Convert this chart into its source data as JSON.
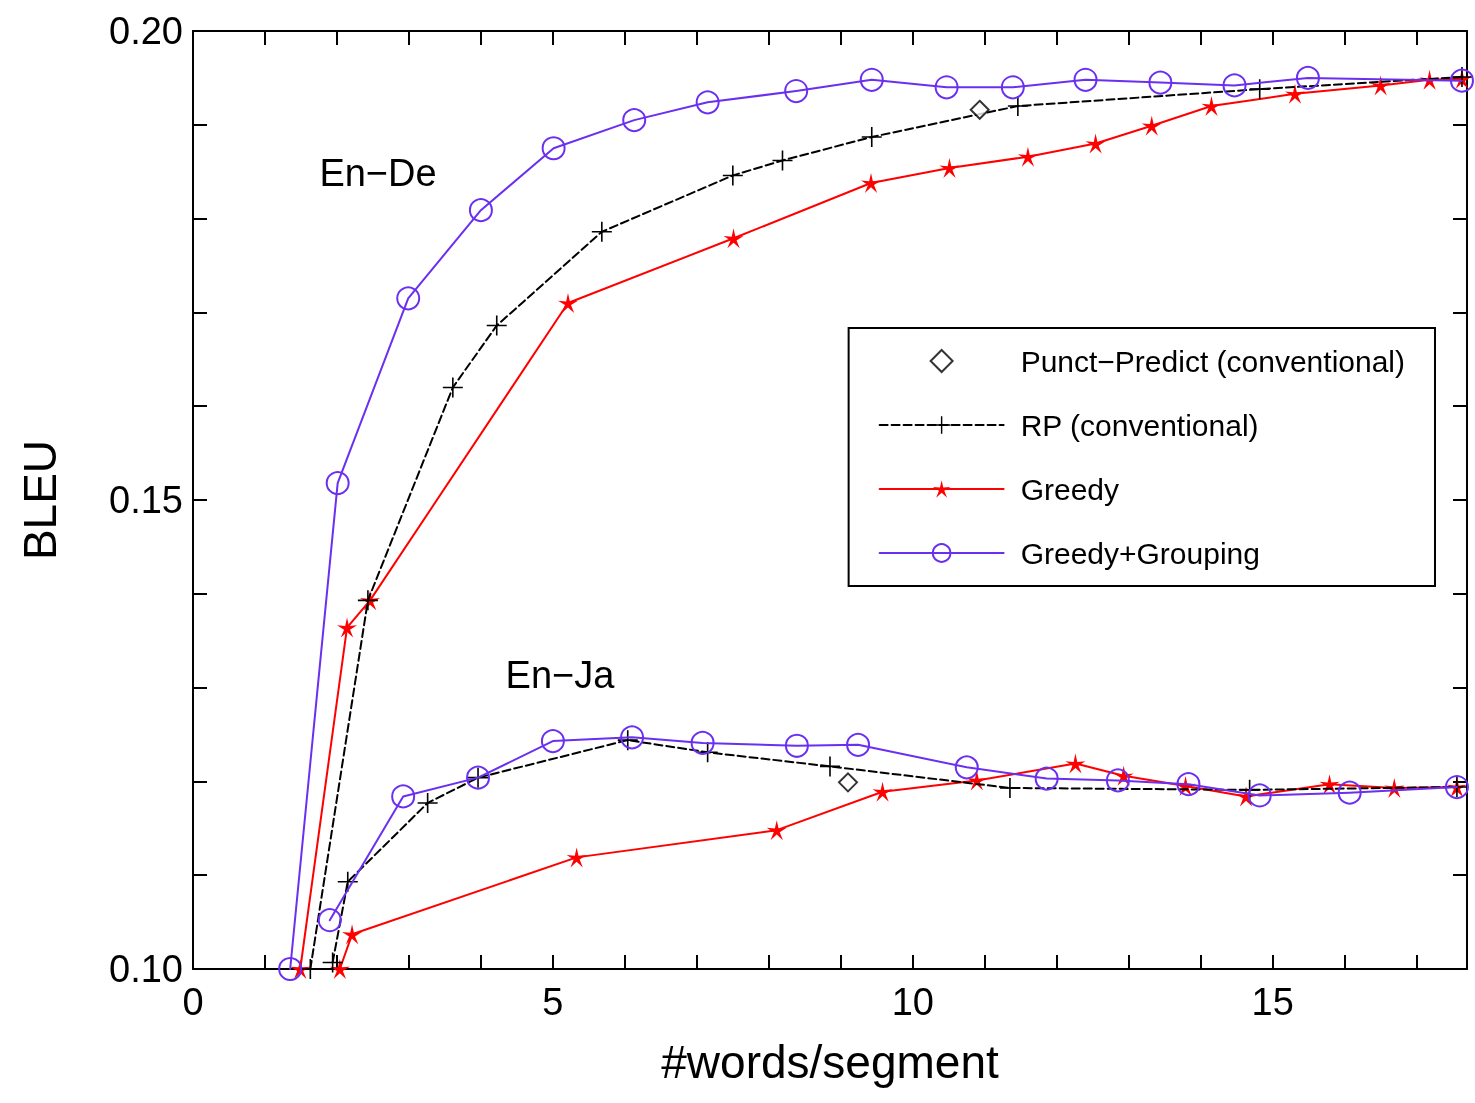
{
  "chart_data": {
    "type": "line",
    "xlabel": "#words/segment",
    "ylabel": "BLEU",
    "xlim": [
      0,
      17.7
    ],
    "ylim": [
      0.1,
      0.2
    ],
    "xticks": [
      0,
      {
        "value": 1,
        "label": null
      },
      {
        "value": 2,
        "label": null
      },
      {
        "value": 3,
        "label": null
      },
      {
        "value": 4,
        "label": null
      },
      5,
      {
        "value": 6,
        "label": null
      },
      {
        "value": 7,
        "label": null
      },
      {
        "value": 8,
        "label": null
      },
      {
        "value": 9,
        "label": null
      },
      10,
      {
        "value": 11,
        "label": null
      },
      {
        "value": 12,
        "label": null
      },
      {
        "value": 13,
        "label": null
      },
      {
        "value": 14,
        "label": null
      },
      15,
      {
        "value": 16,
        "label": null
      },
      {
        "value": 17,
        "label": null
      }
    ],
    "yticks": [
      {
        "value": 0.1,
        "label": "0.10"
      },
      {
        "value": 0.11,
        "label": null
      },
      {
        "value": 0.12,
        "label": null
      },
      {
        "value": 0.13,
        "label": null
      },
      {
        "value": 0.14,
        "label": null
      },
      {
        "value": 0.15,
        "label": "0.15"
      },
      {
        "value": 0.16,
        "label": null
      },
      {
        "value": 0.17,
        "label": null
      },
      {
        "value": 0.18,
        "label": null
      },
      {
        "value": 0.19,
        "label": null
      },
      {
        "value": 0.2,
        "label": "0.20"
      }
    ],
    "grid": false,
    "legend": "right",
    "annotations": [
      "En−De",
      "En−Ja"
    ],
    "series": [
      {
        "name": "Punct−Predict (conventional)",
        "type": "scatter",
        "color": "#000000",
        "marker": "diamond",
        "x": [
          10.93,
          9.1
        ],
        "values": [
          0.1916,
          0.1199
        ]
      },
      {
        "name": "RP (conventional)",
        "color": "#000000",
        "marker": "cross",
        "line_style": "dashed",
        "x": [
          1.63,
          2.43,
          3.61,
          4.22,
          5.68,
          7.5,
          8.19,
          9.43,
          11.46,
          14.82,
          17.63
        ],
        "values": [
          0.1,
          0.1393,
          0.162,
          0.1686,
          0.1786,
          0.1846,
          0.1862,
          0.1887,
          0.192,
          0.1938,
          0.1951
        ]
      },
      {
        "name": "Greedy",
        "color": "#ff0000",
        "marker": "star",
        "line_style": "solid",
        "x": [
          1.49,
          2.14,
          2.46,
          5.21,
          7.51,
          9.42,
          10.51,
          11.6,
          12.54,
          13.32,
          14.15,
          15.31,
          16.5,
          17.18,
          17.63
        ],
        "values": [
          0.1,
          0.1364,
          0.1393,
          0.171,
          0.1779,
          0.1838,
          0.1854,
          0.1866,
          0.188,
          0.1899,
          0.192,
          0.1933,
          0.1942,
          0.1948,
          0.1949
        ]
      },
      {
        "name": "Greedy+Grouping",
        "color": "#6a2ff0",
        "marker": "circle",
        "line_style": "solid",
        "x": [
          1.35,
          2.01,
          2.99,
          4.0,
          5.01,
          6.13,
          7.15,
          8.38,
          9.43,
          10.47,
          11.39,
          12.4,
          13.44,
          14.47,
          15.49,
          17.63
        ],
        "values": [
          0.1,
          0.1518,
          0.1715,
          0.1809,
          0.1875,
          0.1905,
          0.1924,
          0.1936,
          0.1948,
          0.194,
          0.194,
          0.1948,
          0.1945,
          0.1942,
          0.195,
          0.1947
        ]
      },
      {
        "color": "#000000",
        "marker": "cross",
        "line_style": "dashed",
        "x": [
          1.94,
          2.15,
          3.26,
          3.96,
          6.04,
          7.15,
          8.85,
          11.35,
          14.68,
          17.56
        ],
        "values": [
          0.1007,
          0.1093,
          0.1177,
          0.1204,
          0.1244,
          0.1231,
          0.1216,
          0.1193,
          0.1191,
          0.1194
        ]
      },
      {
        "color": "#ff0000",
        "marker": "star",
        "line_style": "solid",
        "x": [
          2.04,
          2.21,
          5.33,
          8.11,
          9.58,
          10.89,
          12.26,
          12.93,
          13.79,
          14.63,
          15.79,
          16.69,
          17.56
        ],
        "values": [
          0.1,
          0.1037,
          0.1119,
          0.1148,
          0.1189,
          0.1201,
          0.1219,
          0.1206,
          0.1195,
          0.1184,
          0.1197,
          0.1193,
          0.1194
        ]
      },
      {
        "color": "#6a2ff0",
        "marker": "circle",
        "line_style": "solid",
        "x": [
          1.9,
          2.92,
          3.96,
          5.0,
          6.1,
          7.08,
          8.39,
          9.24,
          10.75,
          11.86,
          12.85,
          13.83,
          14.82,
          16.07,
          17.56
        ],
        "values": [
          0.1052,
          0.1184,
          0.1204,
          0.1243,
          0.1247,
          0.1241,
          0.1238,
          0.1239,
          0.1215,
          0.1203,
          0.1201,
          0.1197,
          0.1185,
          0.1188,
          0.1194
        ]
      }
    ]
  }
}
